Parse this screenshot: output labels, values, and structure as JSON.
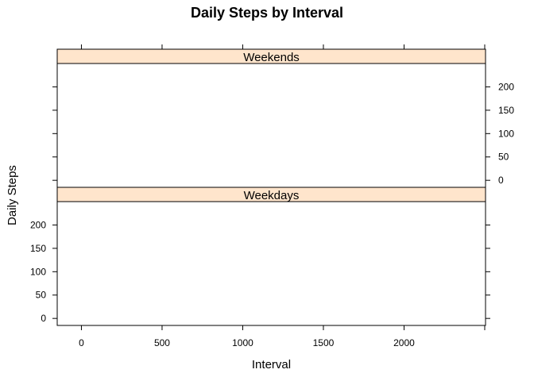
{
  "chart_data": {
    "type": "line",
    "title": "Daily Steps by Interval",
    "xlabel": "Interval",
    "ylabel": "Daily Steps",
    "xlim": [
      -150,
      2505
    ],
    "ylim": [
      -15,
      250
    ],
    "x_ticks": [
      0,
      500,
      1000,
      1500,
      2000
    ],
    "y_ticks": [
      0,
      50,
      100,
      150,
      200
    ],
    "strip_color": "#FFE5CC",
    "panels": [
      {
        "label": "Weekends",
        "series": []
      },
      {
        "label": "Weekdays",
        "series": []
      }
    ],
    "grid": false,
    "legend": "none"
  }
}
